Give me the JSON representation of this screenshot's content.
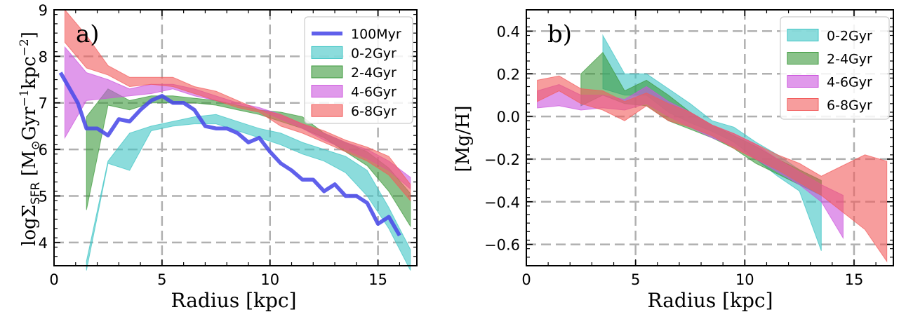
{
  "chart_data": [
    {
      "type": "area",
      "panel_label": "a)",
      "xlabel": "Radius [kpc]",
      "ylabel": "logΣSFR [M⊙Gyr⁻¹kpc⁻²]",
      "ylabel_parts": {
        "log": "log",
        "sigma": "Σ",
        "sub": "SFR",
        "bracket_open": " [M",
        "sun": "⊙",
        "gyr": "Gyr",
        "exp1": "−1",
        "kpc": "kpc",
        "exp2": "−2",
        "bracket_close": "]"
      },
      "xlim": [
        0,
        16.8
      ],
      "ylim": [
        3.5,
        9
      ],
      "xticks": [
        0,
        5,
        10,
        15
      ],
      "xtick_labels": [
        "0",
        "5",
        "10",
        "15"
      ],
      "yticks": [
        4,
        5,
        6,
        7,
        8,
        9
      ],
      "ytick_labels": [
        "4",
        "5",
        "6",
        "7",
        "8",
        "9"
      ],
      "grid": true,
      "legend_position": "top-right",
      "series": [
        {
          "name": "100Myr",
          "kind": "line",
          "color": "#4a4ae8",
          "x": [
            0.3,
            1.1,
            1.5,
            2.0,
            2.5,
            3.0,
            3.5,
            4.0,
            4.5,
            5.0,
            5.5,
            6.0,
            6.5,
            7.0,
            7.5,
            8.0,
            8.5,
            9.0,
            9.5,
            10.0,
            10.5,
            11.0,
            11.5,
            12.0,
            12.5,
            13.0,
            13.5,
            14.0,
            14.5,
            15.0,
            15.5,
            16.0
          ],
          "y": [
            7.65,
            7.0,
            6.45,
            6.45,
            6.3,
            6.65,
            6.6,
            6.85,
            7.05,
            7.15,
            7.0,
            7.0,
            6.85,
            6.5,
            6.45,
            6.45,
            6.35,
            6.15,
            6.25,
            5.95,
            5.7,
            5.55,
            5.35,
            5.35,
            5.1,
            5.25,
            5.0,
            5.0,
            4.85,
            4.4,
            4.55,
            4.15
          ]
        },
        {
          "name": "0-2Gyr",
          "kind": "band",
          "color": "#3fc5c5",
          "x": [
            1.5,
            2.5,
            3.5,
            4.5,
            5.5,
            6.5,
            7.5,
            8.5,
            9.5,
            10.5,
            11.5,
            12.5,
            13.5,
            14.5,
            15.5,
            16.5
          ],
          "lower": [
            3.4,
            5.7,
            5.55,
            6.4,
            6.5,
            6.55,
            6.55,
            6.4,
            6.25,
            6.1,
            5.9,
            5.75,
            5.5,
            5.0,
            4.3,
            3.4
          ],
          "upper": [
            3.6,
            5.75,
            6.35,
            6.5,
            6.6,
            6.7,
            6.75,
            6.6,
            6.45,
            6.35,
            6.15,
            6.0,
            5.85,
            5.55,
            4.75,
            3.85
          ]
        },
        {
          "name": "2-4Gyr",
          "kind": "band",
          "color": "#3c9a3c",
          "x": [
            1.5,
            2.5,
            3.5,
            4.5,
            5.5,
            6.5,
            7.5,
            8.5,
            9.5,
            10.5,
            11.5,
            12.5,
            13.5,
            14.5,
            15.5,
            16.5
          ],
          "lower": [
            4.7,
            6.95,
            6.85,
            7.0,
            7.0,
            7.0,
            6.95,
            6.85,
            6.75,
            6.6,
            6.45,
            6.25,
            5.95,
            5.65,
            5.1,
            4.35
          ],
          "upper": [
            6.7,
            7.3,
            7.05,
            7.15,
            7.15,
            7.1,
            7.05,
            6.95,
            6.85,
            6.8,
            6.7,
            6.35,
            6.15,
            5.95,
            5.6,
            5.05
          ]
        },
        {
          "name": "4-6Gyr",
          "kind": "band",
          "color": "#cc55dd",
          "x": [
            0.5,
            1.5,
            2.5,
            3.5,
            4.5,
            5.5,
            6.5,
            7.5,
            8.5,
            9.5,
            10.5,
            11.5,
            12.5,
            13.5,
            14.5,
            15.5,
            16.5
          ],
          "lower": [
            6.25,
            7.05,
            7.1,
            7.15,
            7.2,
            7.3,
            7.15,
            7.05,
            6.95,
            6.85,
            6.65,
            6.45,
            6.2,
            6.0,
            5.8,
            5.55,
            5.15
          ],
          "upper": [
            8.2,
            7.65,
            7.5,
            7.3,
            7.4,
            7.4,
            7.3,
            7.15,
            7.0,
            6.9,
            6.75,
            6.55,
            6.35,
            6.15,
            6.0,
            5.75,
            5.4
          ]
        },
        {
          "name": "6-8Gyr",
          "kind": "band",
          "color": "#f25c5c",
          "x": [
            0.5,
            1.5,
            2.5,
            3.5,
            4.5,
            5.5,
            6.5,
            7.5,
            8.5,
            9.5,
            10.5,
            11.5,
            12.5,
            13.5,
            14.5,
            15.5,
            16.5
          ],
          "lower": [
            8.3,
            7.75,
            7.6,
            7.35,
            7.4,
            7.35,
            7.2,
            7.05,
            6.9,
            6.8,
            6.5,
            6.35,
            6.15,
            5.95,
            5.75,
            5.45,
            4.9
          ],
          "upper": [
            9.0,
            8.45,
            7.8,
            7.55,
            7.55,
            7.55,
            7.35,
            7.25,
            7.05,
            6.85,
            6.75,
            6.55,
            6.4,
            6.2,
            6.05,
            5.85,
            5.25
          ]
        }
      ]
    },
    {
      "type": "area",
      "panel_label": "b)",
      "xlabel": "Radius [kpc]",
      "ylabel": "[Mg/H]",
      "xlim": [
        0,
        16.8
      ],
      "ylim": [
        -0.7,
        0.5
      ],
      "xticks": [
        0,
        5,
        10,
        15
      ],
      "xtick_labels": [
        "0",
        "5",
        "10",
        "15"
      ],
      "yticks": [
        -0.6,
        -0.4,
        -0.2,
        0.0,
        0.2,
        0.4
      ],
      "ytick_labels": [
        "−0.6",
        "−0.4",
        "−0.2",
        "0.0",
        "0.2",
        "0.4"
      ],
      "grid": true,
      "legend_position": "top-right",
      "series": [
        {
          "name": "0-2Gyr",
          "kind": "band",
          "color": "#3fc5c5",
          "x": [
            3.5,
            4.5,
            5.5,
            6.5,
            7.5,
            8.5,
            9.5,
            10.5,
            11.5,
            12.5,
            13.5
          ],
          "lower": [
            0.13,
            0.1,
            0.1,
            0.02,
            -0.03,
            -0.07,
            -0.12,
            -0.2,
            -0.28,
            -0.35,
            -0.63
          ],
          "upper": [
            0.38,
            0.2,
            0.2,
            0.13,
            0.06,
            -0.02,
            -0.05,
            -0.12,
            -0.18,
            -0.25,
            -0.3
          ]
        },
        {
          "name": "2-4Gyr",
          "kind": "band",
          "color": "#3c9a3c",
          "x": [
            2.5,
            3.5,
            4.5,
            5.5,
            6.5,
            7.5,
            8.5,
            9.5,
            10.5,
            11.5,
            12.5,
            13.5
          ],
          "lower": [
            0.05,
            0.1,
            0.06,
            0.05,
            -0.02,
            -0.06,
            -0.1,
            -0.15,
            -0.22,
            -0.27,
            -0.32,
            -0.37
          ],
          "upper": [
            0.2,
            0.3,
            0.12,
            0.17,
            0.1,
            0.02,
            -0.04,
            -0.09,
            -0.14,
            -0.2,
            -0.25,
            -0.3
          ]
        },
        {
          "name": "4-6Gyr",
          "kind": "band",
          "color": "#cc55dd",
          "x": [
            0.5,
            1.5,
            2.5,
            3.5,
            4.5,
            5.5,
            6.5,
            7.5,
            8.5,
            9.5,
            10.5,
            11.5,
            12.5,
            13.5,
            14.5
          ],
          "lower": [
            0.04,
            0.05,
            0.03,
            0.04,
            0.03,
            0.06,
            0.0,
            -0.05,
            -0.1,
            -0.14,
            -0.2,
            -0.26,
            -0.32,
            -0.4,
            -0.57
          ],
          "upper": [
            0.12,
            0.15,
            0.1,
            0.1,
            0.08,
            0.14,
            0.07,
            0.02,
            -0.04,
            -0.08,
            -0.13,
            -0.2,
            -0.26,
            -0.32,
            -0.37
          ]
        },
        {
          "name": "6-8Gyr",
          "kind": "band",
          "color": "#f25c5c",
          "x": [
            0.5,
            1.5,
            2.5,
            3.5,
            4.5,
            5.5,
            6.5,
            7.5,
            8.5,
            9.5,
            10.5,
            11.5,
            12.5,
            13.5,
            14.5,
            15.5,
            16.5
          ],
          "lower": [
            0.07,
            0.12,
            0.06,
            0.03,
            -0.02,
            0.05,
            -0.02,
            -0.05,
            -0.09,
            -0.15,
            -0.2,
            -0.25,
            -0.31,
            -0.37,
            -0.45,
            -0.53,
            -0.68
          ],
          "upper": [
            0.17,
            0.19,
            0.13,
            0.12,
            0.07,
            0.11,
            0.06,
            0.02,
            -0.04,
            -0.08,
            -0.13,
            -0.18,
            -0.22,
            -0.28,
            -0.23,
            -0.18,
            -0.21
          ]
        }
      ]
    }
  ]
}
